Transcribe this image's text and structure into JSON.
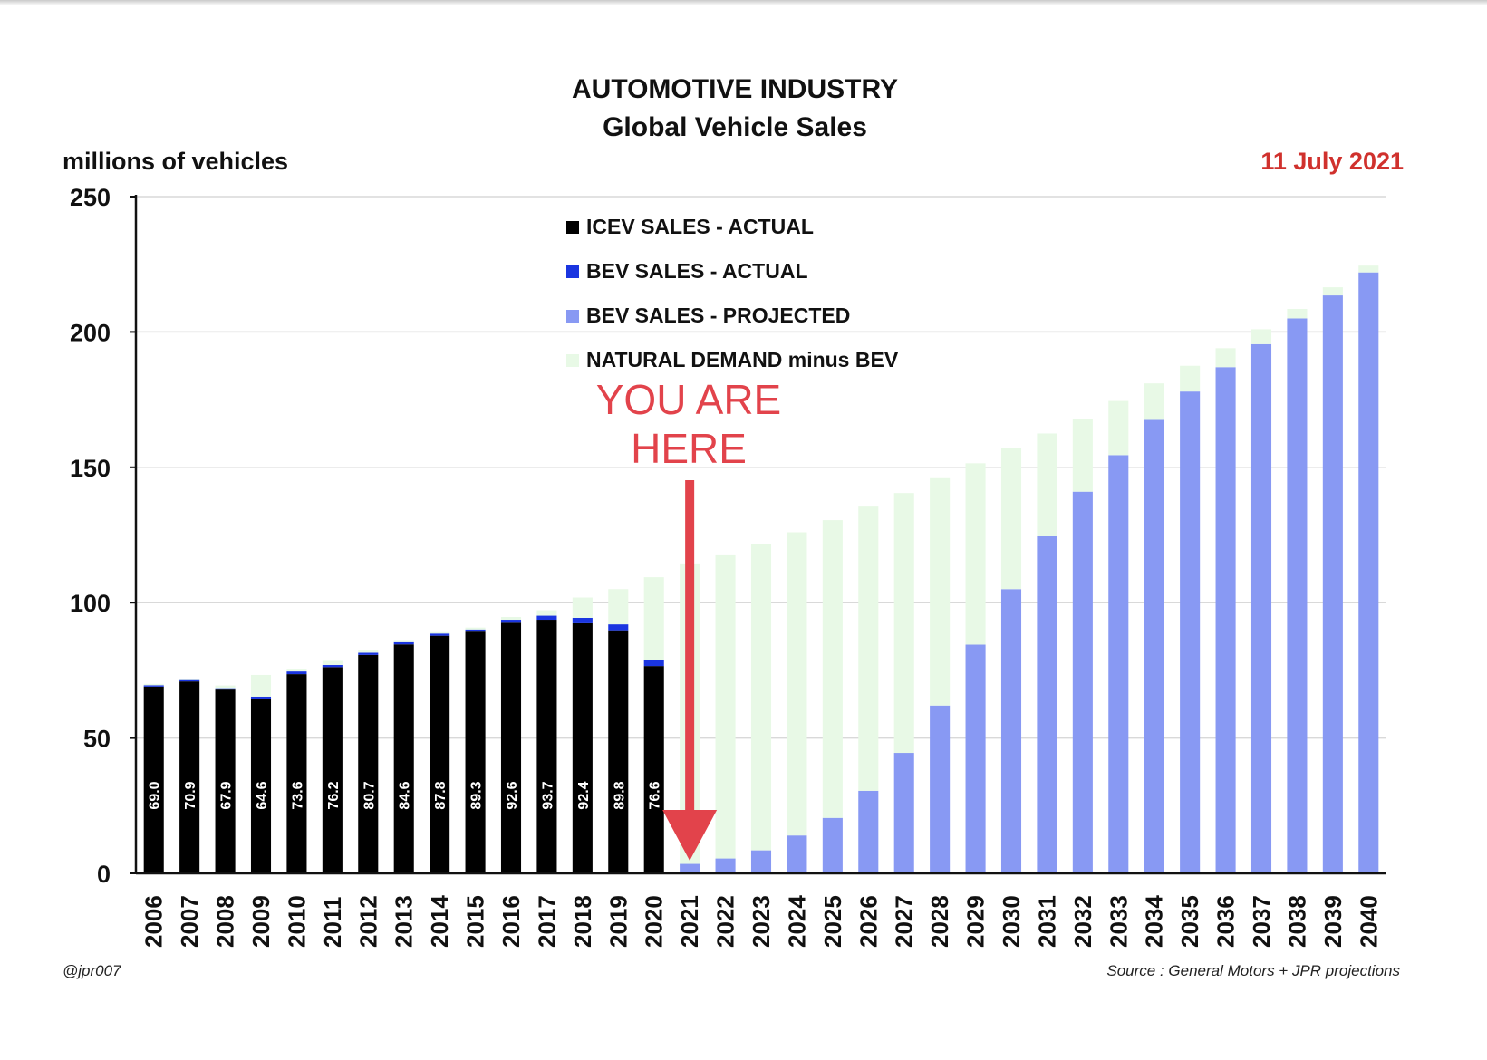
{
  "header": {
    "title": "AUTOMOTIVE INDUSTRY",
    "subtitle": "Global Vehicle Sales",
    "y_unit_label": "millions of vehicles",
    "date": "11 July 2021"
  },
  "footer": {
    "handle": "@jpr007",
    "source": "Source : General Motors + JPR projections"
  },
  "annotation": {
    "line1": "YOU ARE",
    "line2": "HERE",
    "year": "2021"
  },
  "colors": {
    "icev": "#000000",
    "bev_actual": "#1a35e0",
    "bev_projected": "#8899f3",
    "natural_demand": "#e8f9e6",
    "annotation": "#e2434b",
    "date": "#d0312d",
    "gridline": "#d9d9d9"
  },
  "legend": [
    {
      "key": "icev",
      "label": "ICEV SALES - ACTUAL"
    },
    {
      "key": "bev_actual",
      "label": "BEV SALES - ACTUAL"
    },
    {
      "key": "bev_projected",
      "label": "BEV SALES - PROJECTED"
    },
    {
      "key": "natural_demand",
      "label": "NATURAL DEMAND minus BEV"
    }
  ],
  "chart_data": {
    "type": "bar",
    "stacked": true,
    "categories": [
      "2006",
      "2007",
      "2008",
      "2009",
      "2010",
      "2011",
      "2012",
      "2013",
      "2014",
      "2015",
      "2016",
      "2017",
      "2018",
      "2019",
      "2020",
      "2021",
      "2022",
      "2023",
      "2024",
      "2025",
      "2026",
      "2027",
      "2028",
      "2029",
      "2030",
      "2031",
      "2032",
      "2033",
      "2034",
      "2035",
      "2036",
      "2037",
      "2038",
      "2039",
      "2040"
    ],
    "series": [
      {
        "name": "ICEV SALES - ACTUAL",
        "key": "icev",
        "values": [
          69.0,
          70.9,
          67.9,
          64.6,
          73.6,
          76.2,
          80.7,
          84.6,
          87.8,
          89.3,
          92.6,
          93.7,
          92.4,
          89.8,
          76.6,
          0,
          0,
          0,
          0,
          0,
          0,
          0,
          0,
          0,
          0,
          0,
          0,
          0,
          0,
          0,
          0,
          0,
          0,
          0,
          0
        ]
      },
      {
        "name": "BEV SALES - ACTUAL",
        "key": "bev_actual",
        "values": [
          0.5,
          0.5,
          0.5,
          0.7,
          1.0,
          0.8,
          0.8,
          0.8,
          0.8,
          0.8,
          1.1,
          1.5,
          2.0,
          2.2,
          2.3,
          0,
          0,
          0,
          0,
          0,
          0,
          0,
          0,
          0,
          0,
          0,
          0,
          0,
          0,
          0,
          0,
          0,
          0,
          0,
          0
        ]
      },
      {
        "name": "BEV SALES - PROJECTED",
        "key": "bev_projected",
        "values": [
          0,
          0,
          0,
          0,
          0,
          0,
          0,
          0,
          0,
          0,
          0,
          0,
          0,
          0,
          0,
          3.5,
          5.5,
          8.5,
          14,
          20.5,
          30.5,
          44.5,
          62,
          84.5,
          105,
          124.5,
          141,
          154.5,
          167.5,
          178,
          187,
          195.5,
          205,
          213.5,
          222
        ]
      },
      {
        "name": "NATURAL DEMAND minus BEV",
        "key": "natural_demand",
        "values": [
          0.5,
          0.5,
          1.0,
          8.0,
          1.0,
          1.5,
          0.8,
          0.8,
          0.5,
          0.7,
          1.0,
          2.0,
          7.5,
          13,
          30.5,
          111,
          112,
          113,
          112,
          110,
          105,
          96,
          84,
          67,
          52,
          38,
          27,
          20,
          13.5,
          9.5,
          7,
          5.5,
          3.5,
          3,
          2.5
        ]
      }
    ],
    "bar_labels": [
      "69.0",
      "70.9",
      "67.9",
      "64.6",
      "73.6",
      "76.2",
      "80.7",
      "84.6",
      "87.8",
      "89.3",
      "92.6",
      "93.7",
      "92.4",
      "89.8",
      "76.6"
    ],
    "yticks": [
      "0",
      "50",
      "100",
      "150",
      "200",
      "250"
    ],
    "ylim": [
      0,
      250
    ],
    "grid": true,
    "legend_position": "top-center"
  }
}
